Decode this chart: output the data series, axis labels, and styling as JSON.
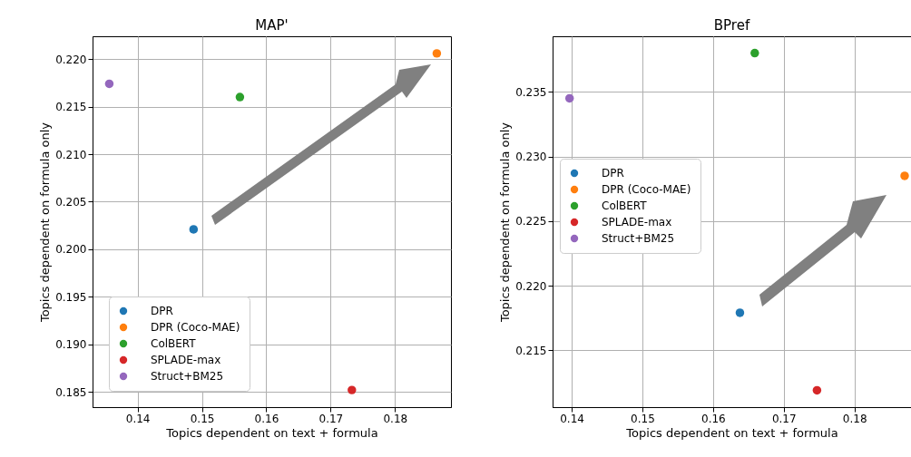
{
  "chart_data": [
    {
      "type": "scatter",
      "title": "MAP'",
      "xlabel": "Topics dependent on text + formula",
      "ylabel": "Topics dependent on formula only",
      "xlim": [
        0.133,
        0.1887
      ],
      "ylim": [
        0.1834,
        0.2224
      ],
      "xticks": [
        0.14,
        0.15,
        0.16,
        0.17,
        0.18
      ],
      "yticks": [
        0.185,
        {
          "value": 0.19,
          "label": "0.190"
        },
        0.195,
        {
          "value": 0.2,
          "label": "0.200"
        },
        0.205,
        {
          "value": 0.21,
          "label": "0.210"
        },
        0.215,
        {
          "value": 0.22,
          "label": "0.220"
        }
      ],
      "grid": true,
      "legend": "bottom left",
      "marker": "circle",
      "series": [
        {
          "name": "DPR",
          "color": "#1f77b4",
          "x": [
            0.1487
          ],
          "values": [
            0.2021
          ]
        },
        {
          "name": "DPR (Coco-MAE)",
          "color": "#ff7f0e",
          "x": [
            0.1865
          ],
          "values": [
            0.2206
          ]
        },
        {
          "name": "ColBERT",
          "color": "#2ca02c",
          "x": [
            0.1559
          ],
          "values": [
            0.216
          ]
        },
        {
          "name": "SPLADE-max",
          "color": "#d62728",
          "x": [
            0.1733
          ],
          "values": [
            0.1852
          ]
        },
        {
          "name": "Struct+BM25",
          "color": "#9467bd",
          "x": [
            0.1356
          ],
          "values": [
            0.2174
          ]
        }
      ]
    },
    {
      "type": "scatter",
      "title": "BPref",
      "xlabel": "Topics dependent on text + formula",
      "ylabel": "Topics dependent on formula only",
      "xlim": [
        0.1373,
        0.188
      ],
      "ylim": [
        0.2106,
        0.2393
      ],
      "xticks": [
        0.14,
        0.15,
        0.16,
        0.17,
        0.18
      ],
      "yticks": [
        0.215,
        {
          "value": 0.22,
          "label": "0.220"
        },
        0.225,
        {
          "value": 0.23,
          "label": "0.230"
        },
        0.235
      ],
      "grid": true,
      "legend": "left",
      "marker": "circle",
      "series": [
        {
          "name": "DPR",
          "color": "#1f77b4",
          "x": [
            0.1638
          ],
          "values": [
            0.2179
          ]
        },
        {
          "name": "DPR (Coco-MAE)",
          "color": "#ff7f0e",
          "x": [
            0.1871
          ],
          "values": [
            0.2285
          ]
        },
        {
          "name": "ColBERT",
          "color": "#2ca02c",
          "x": [
            0.1659
          ],
          "values": [
            0.238
          ]
        },
        {
          "name": "SPLADE-max",
          "color": "#d62728",
          "x": [
            0.1747
          ],
          "values": [
            0.2119
          ]
        },
        {
          "name": "Struct+BM25",
          "color": "#9467bd",
          "x": [
            0.1397
          ],
          "values": [
            0.2345
          ]
        }
      ]
    }
  ]
}
